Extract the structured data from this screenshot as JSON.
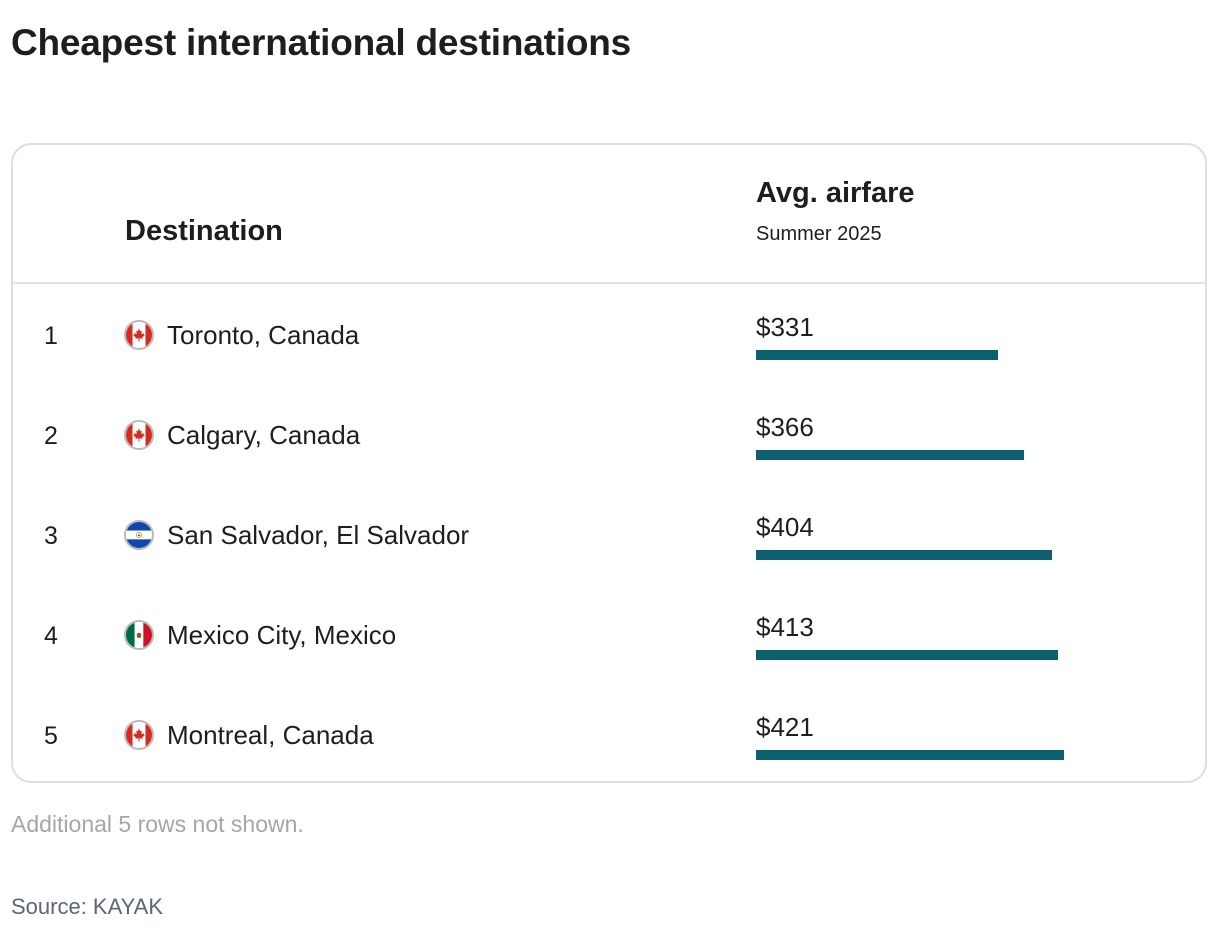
{
  "title": "Cheapest international destinations",
  "chart_data": {
    "type": "table",
    "columns": {
      "destination": "Destination",
      "price": "Avg. airfare",
      "price_sub": "Summer 2025"
    },
    "rows": [
      {
        "rank": "1",
        "destination": "Toronto, Canada",
        "flag": "canada-flag-icon",
        "price_label": "$331",
        "value": 331
      },
      {
        "rank": "2",
        "destination": "Calgary, Canada",
        "flag": "canada-flag-icon",
        "price_label": "$366",
        "value": 366
      },
      {
        "rank": "3",
        "destination": "San Salvador, El Salvador",
        "flag": "el-salvador-flag-icon",
        "price_label": "$404",
        "value": 404
      },
      {
        "rank": "4",
        "destination": "Mexico City, Mexico",
        "flag": "mexico-flag-icon",
        "price_label": "$413",
        "value": 413
      },
      {
        "rank": "5",
        "destination": "Montreal, Canada",
        "flag": "canada-flag-icon",
        "price_label": "$421",
        "value": 421
      }
    ],
    "bar_max": 421,
    "bar_color": "#0b5f6e"
  },
  "note": "Additional 5 rows not shown.",
  "source": "Source: KAYAK"
}
